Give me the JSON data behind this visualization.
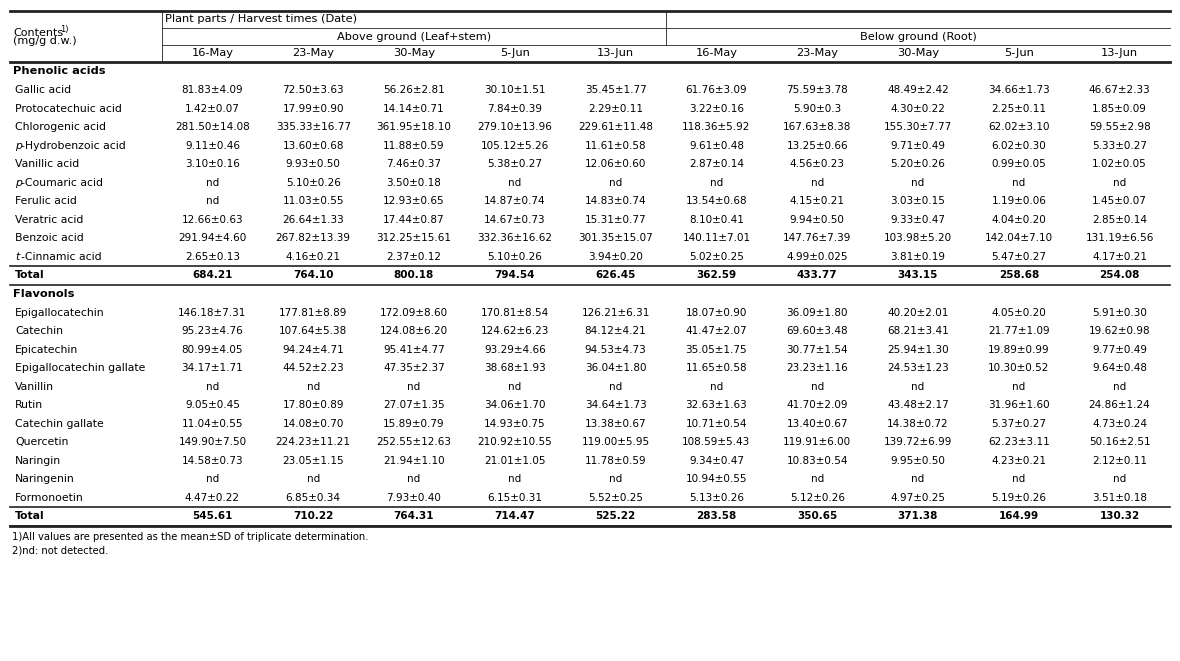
{
  "dates": [
    "16-May",
    "23-May",
    "30-May",
    "5-Jun",
    "13-Jun",
    "16-May",
    "23-May",
    "30-May",
    "5-Jun",
    "13-Jun"
  ],
  "section1_label": "Phenolic acids",
  "section2_label": "Flavonols",
  "rows": [
    {
      "name": "Gallic acid",
      "values": [
        "81.83±4.09",
        "72.50±3.63",
        "56.26±2.81",
        "30.10±1.51",
        "35.45±1.77",
        "61.76±3.09",
        "75.59±3.78",
        "48.49±2.42",
        "34.66±1.73",
        "46.67±2.33"
      ],
      "bold": false,
      "italic_p": false,
      "italic_t": false,
      "section": 1
    },
    {
      "name": "Protocatechuic acid",
      "values": [
        "1.42±0.07",
        "17.99±0.90",
        "14.14±0.71",
        "7.84±0.39",
        "2.29±0.11",
        "3.22±0.16",
        "5.90±0.3",
        "4.30±0.22",
        "2.25±0.11",
        "1.85±0.09"
      ],
      "bold": false,
      "italic_p": false,
      "italic_t": false,
      "section": 1
    },
    {
      "name": "Chlorogenic acid",
      "values": [
        "281.50±14.08",
        "335.33±16.77",
        "361.95±18.10",
        "279.10±13.96",
        "229.61±11.48",
        "118.36±5.92",
        "167.63±8.38",
        "155.30±7.77",
        "62.02±3.10",
        "59.55±2.98"
      ],
      "bold": false,
      "italic_p": false,
      "italic_t": false,
      "section": 1
    },
    {
      "name": "p-Hydrobenzoic acid",
      "values": [
        "9.11±0.46",
        "13.60±0.68",
        "11.88±0.59",
        "105.12±5.26",
        "11.61±0.58",
        "9.61±0.48",
        "13.25±0.66",
        "9.71±0.49",
        "6.02±0.30",
        "5.33±0.27"
      ],
      "bold": false,
      "italic_p": true,
      "italic_t": false,
      "section": 1
    },
    {
      "name": "Vanillic acid",
      "values": [
        "3.10±0.16",
        "9.93±0.50",
        "7.46±0.37",
        "5.38±0.27",
        "12.06±0.60",
        "2.87±0.14",
        "4.56±0.23",
        "5.20±0.26",
        "0.99±0.05",
        "1.02±0.05"
      ],
      "bold": false,
      "italic_p": false,
      "italic_t": false,
      "section": 1
    },
    {
      "name": "p-Coumaric acid",
      "values": [
        "nd",
        "5.10±0.26",
        "3.50±0.18",
        "nd",
        "nd",
        "nd",
        "nd",
        "nd",
        "nd",
        "nd"
      ],
      "bold": false,
      "italic_p": true,
      "italic_t": false,
      "section": 1
    },
    {
      "name": "Ferulic acid",
      "values": [
        "nd",
        "11.03±0.55",
        "12.93±0.65",
        "14.87±0.74",
        "14.83±0.74",
        "13.54±0.68",
        "4.15±0.21",
        "3.03±0.15",
        "1.19±0.06",
        "1.45±0.07"
      ],
      "bold": false,
      "italic_p": false,
      "italic_t": false,
      "section": 1
    },
    {
      "name": "Veratric acid",
      "values": [
        "12.66±0.63",
        "26.64±1.33",
        "17.44±0.87",
        "14.67±0.73",
        "15.31±0.77",
        "8.10±0.41",
        "9.94±0.50",
        "9.33±0.47",
        "4.04±0.20",
        "2.85±0.14"
      ],
      "bold": false,
      "italic_p": false,
      "italic_t": false,
      "section": 1
    },
    {
      "name": "Benzoic acid",
      "values": [
        "291.94±4.60",
        "267.82±13.39",
        "312.25±15.61",
        "332.36±16.62",
        "301.35±15.07",
        "140.11±7.01",
        "147.76±7.39",
        "103.98±5.20",
        "142.04±7.10",
        "131.19±6.56"
      ],
      "bold": false,
      "italic_p": false,
      "italic_t": false,
      "section": 1
    },
    {
      "name": "t-Cinnamic acid",
      "values": [
        "2.65±0.13",
        "4.16±0.21",
        "2.37±0.12",
        "5.10±0.26",
        "3.94±0.20",
        "5.02±0.25",
        "4.99±0.025",
        "3.81±0.19",
        "5.47±0.27",
        "4.17±0.21"
      ],
      "bold": false,
      "italic_p": false,
      "italic_t": true,
      "section": 1
    },
    {
      "name": "Total",
      "values": [
        "684.21",
        "764.10",
        "800.18",
        "794.54",
        "626.45",
        "362.59",
        "433.77",
        "343.15",
        "258.68",
        "254.08"
      ],
      "bold": true,
      "italic_p": false,
      "italic_t": false,
      "section": 1
    },
    {
      "name": "Epigallocatechin",
      "values": [
        "146.18±7.31",
        "177.81±8.89",
        "172.09±8.60",
        "170.81±8.54",
        "126.21±6.31",
        "18.07±0.90",
        "36.09±1.80",
        "40.20±2.01",
        "4.05±0.20",
        "5.91±0.30"
      ],
      "bold": false,
      "italic_p": false,
      "italic_t": false,
      "section": 2
    },
    {
      "name": "Catechin",
      "values": [
        "95.23±4.76",
        "107.64±5.38",
        "124.08±6.20",
        "124.62±6.23",
        "84.12±4.21",
        "41.47±2.07",
        "69.60±3.48",
        "68.21±3.41",
        "21.77±1.09",
        "19.62±0.98"
      ],
      "bold": false,
      "italic_p": false,
      "italic_t": false,
      "section": 2
    },
    {
      "name": "Epicatechin",
      "values": [
        "80.99±4.05",
        "94.24±4.71",
        "95.41±4.77",
        "93.29±4.66",
        "94.53±4.73",
        "35.05±1.75",
        "30.77±1.54",
        "25.94±1.30",
        "19.89±0.99",
        "9.77±0.49"
      ],
      "bold": false,
      "italic_p": false,
      "italic_t": false,
      "section": 2
    },
    {
      "name": "Epigallocatechin gallate",
      "values": [
        "34.17±1.71",
        "44.52±2.23",
        "47.35±2.37",
        "38.68±1.93",
        "36.04±1.80",
        "11.65±0.58",
        "23.23±1.16",
        "24.53±1.23",
        "10.30±0.52",
        "9.64±0.48"
      ],
      "bold": false,
      "italic_p": false,
      "italic_t": false,
      "section": 2
    },
    {
      "name": "Vanillin",
      "values": [
        "nd",
        "nd",
        "nd",
        "nd",
        "nd",
        "nd",
        "nd",
        "nd",
        "nd",
        "nd"
      ],
      "bold": false,
      "italic_p": false,
      "italic_t": false,
      "section": 2
    },
    {
      "name": "Rutin",
      "values": [
        "9.05±0.45",
        "17.80±0.89",
        "27.07±1.35",
        "34.06±1.70",
        "34.64±1.73",
        "32.63±1.63",
        "41.70±2.09",
        "43.48±2.17",
        "31.96±1.60",
        "24.86±1.24"
      ],
      "bold": false,
      "italic_p": false,
      "italic_t": false,
      "section": 2
    },
    {
      "name": "Catechin gallate",
      "values": [
        "11.04±0.55",
        "14.08±0.70",
        "15.89±0.79",
        "14.93±0.75",
        "13.38±0.67",
        "10.71±0.54",
        "13.40±0.67",
        "14.38±0.72",
        "5.37±0.27",
        "4.73±0.24"
      ],
      "bold": false,
      "italic_p": false,
      "italic_t": false,
      "section": 2
    },
    {
      "name": "Quercetin",
      "values": [
        "149.90±7.50",
        "224.23±11.21",
        "252.55±12.63",
        "210.92±10.55",
        "119.00±5.95",
        "108.59±5.43",
        "119.91±6.00",
        "139.72±6.99",
        "62.23±3.11",
        "50.16±2.51"
      ],
      "bold": false,
      "italic_p": false,
      "italic_t": false,
      "section": 2
    },
    {
      "name": "Naringin",
      "values": [
        "14.58±0.73",
        "23.05±1.15",
        "21.94±1.10",
        "21.01±1.05",
        "11.78±0.59",
        "9.34±0.47",
        "10.83±0.54",
        "9.95±0.50",
        "4.23±0.21",
        "2.12±0.11"
      ],
      "bold": false,
      "italic_p": false,
      "italic_t": false,
      "section": 2
    },
    {
      "name": "Naringenin",
      "values": [
        "nd",
        "nd",
        "nd",
        "nd",
        "nd",
        "10.94±0.55",
        "nd",
        "nd",
        "nd",
        "nd"
      ],
      "bold": false,
      "italic_p": false,
      "italic_t": false,
      "section": 2
    },
    {
      "name": "Formonoetin",
      "values": [
        "4.47±0.22",
        "6.85±0.34",
        "7.93±0.40",
        "6.15±0.31",
        "5.52±0.25",
        "5.13±0.26",
        "5.12±0.26",
        "4.97±0.25",
        "5.19±0.26",
        "3.51±0.18"
      ],
      "bold": false,
      "italic_p": false,
      "italic_t": false,
      "section": 2
    },
    {
      "name": "Total",
      "values": [
        "545.61",
        "710.22",
        "764.31",
        "714.47",
        "525.22",
        "283.58",
        "350.65",
        "371.38",
        "164.99",
        "130.32"
      ],
      "bold": true,
      "italic_p": false,
      "italic_t": false,
      "section": 2
    }
  ]
}
